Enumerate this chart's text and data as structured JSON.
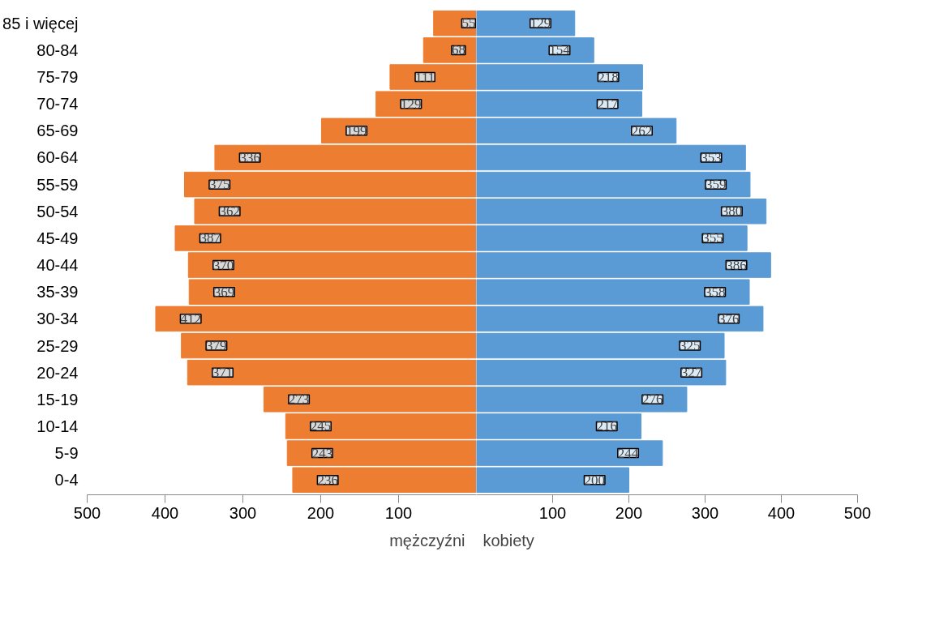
{
  "chart_data": [
    {
      "type": "bar",
      "orientation": "horizontal",
      "categories": [
        "85 i więcej",
        "80-84",
        "75-79",
        "70-74",
        "65-69",
        "60-64",
        "55-59",
        "50-54",
        "45-49",
        "40-44",
        "35-39",
        "30-34",
        "25-29",
        "20-24",
        "15-19",
        "10-14",
        "5-9",
        "0-4"
      ],
      "series": [
        {
          "name": "mężczyźni",
          "color": "#ed7d31",
          "values": [
            55,
            68,
            111,
            129,
            199,
            336,
            375,
            362,
            387,
            370,
            369,
            412,
            379,
            371,
            273,
            245,
            243,
            236
          ]
        }
      ],
      "data_labels": true,
      "xlim": [
        500,
        0
      ],
      "xticks": [
        500,
        400,
        300,
        200,
        100,
        {
          "value": 0,
          "label": null
        }
      ],
      "grid": false,
      "legend": "bottom"
    },
    {
      "type": "bar",
      "orientation": "horizontal",
      "categories": [
        null,
        null,
        null,
        null,
        null,
        null,
        null,
        null,
        null,
        null,
        null,
        null,
        null,
        null,
        null,
        null,
        null,
        null
      ],
      "series": [
        {
          "name": "kobiety",
          "color": "#5b9bd5",
          "values": [
            129,
            154,
            218,
            217,
            262,
            353,
            359,
            380,
            355,
            386,
            358,
            376,
            325,
            327,
            276,
            216,
            244,
            200
          ]
        }
      ],
      "data_labels": true,
      "xlim": [
        0,
        500
      ],
      "xticks": [
        100,
        200,
        300,
        400,
        500
      ],
      "tick_labels": "x",
      "grid": false,
      "legend": "bottom"
    }
  ]
}
